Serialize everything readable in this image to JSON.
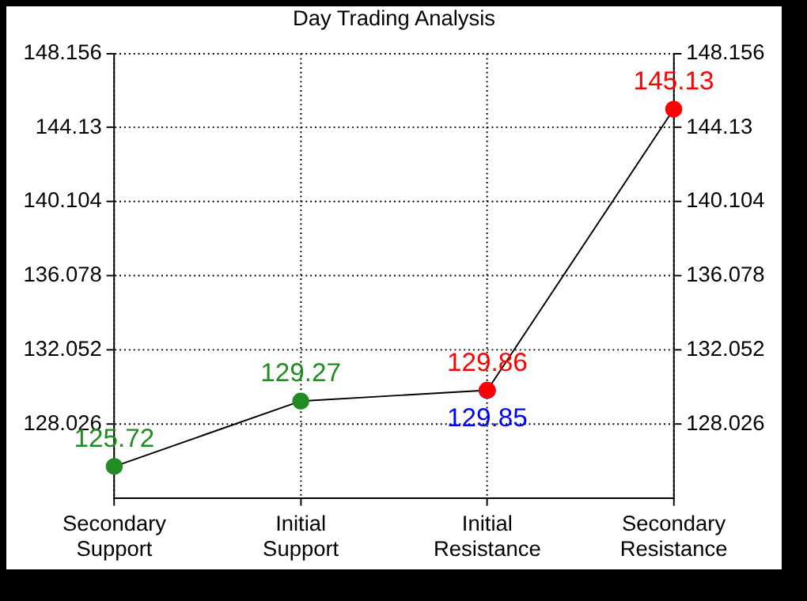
{
  "chart_data": {
    "type": "line",
    "title": "Day Trading Analysis",
    "categories": [
      "Secondary Support",
      "Initial Support",
      "Initial Resistance",
      "Secondary Resistance"
    ],
    "series": [
      {
        "color": "#000000",
        "colors": [
          "#228b22",
          "#228b22",
          "#ff0000",
          "#ff0000"
        ],
        "values": [
          125.72,
          129.27,
          129.86,
          145.13
        ]
      },
      {
        "type": "scatter",
        "color": "#0000ff",
        "x": [
          "Initial Resistance"
        ],
        "values": [
          129.85
        ]
      }
    ],
    "ylim": [
      124,
      148.156
    ],
    "yticks": [
      128.026,
      132.052,
      136.078,
      140.104,
      144.13,
      148.156
    ],
    "y2lim": [
      124,
      148.156
    ],
    "y2ticks": [
      128.026,
      132.052,
      136.078,
      140.104,
      144.13,
      148.156
    ],
    "grid": true,
    "legend": false,
    "marker": "circle",
    "line_style": "solid",
    "data_labels": true
  }
}
